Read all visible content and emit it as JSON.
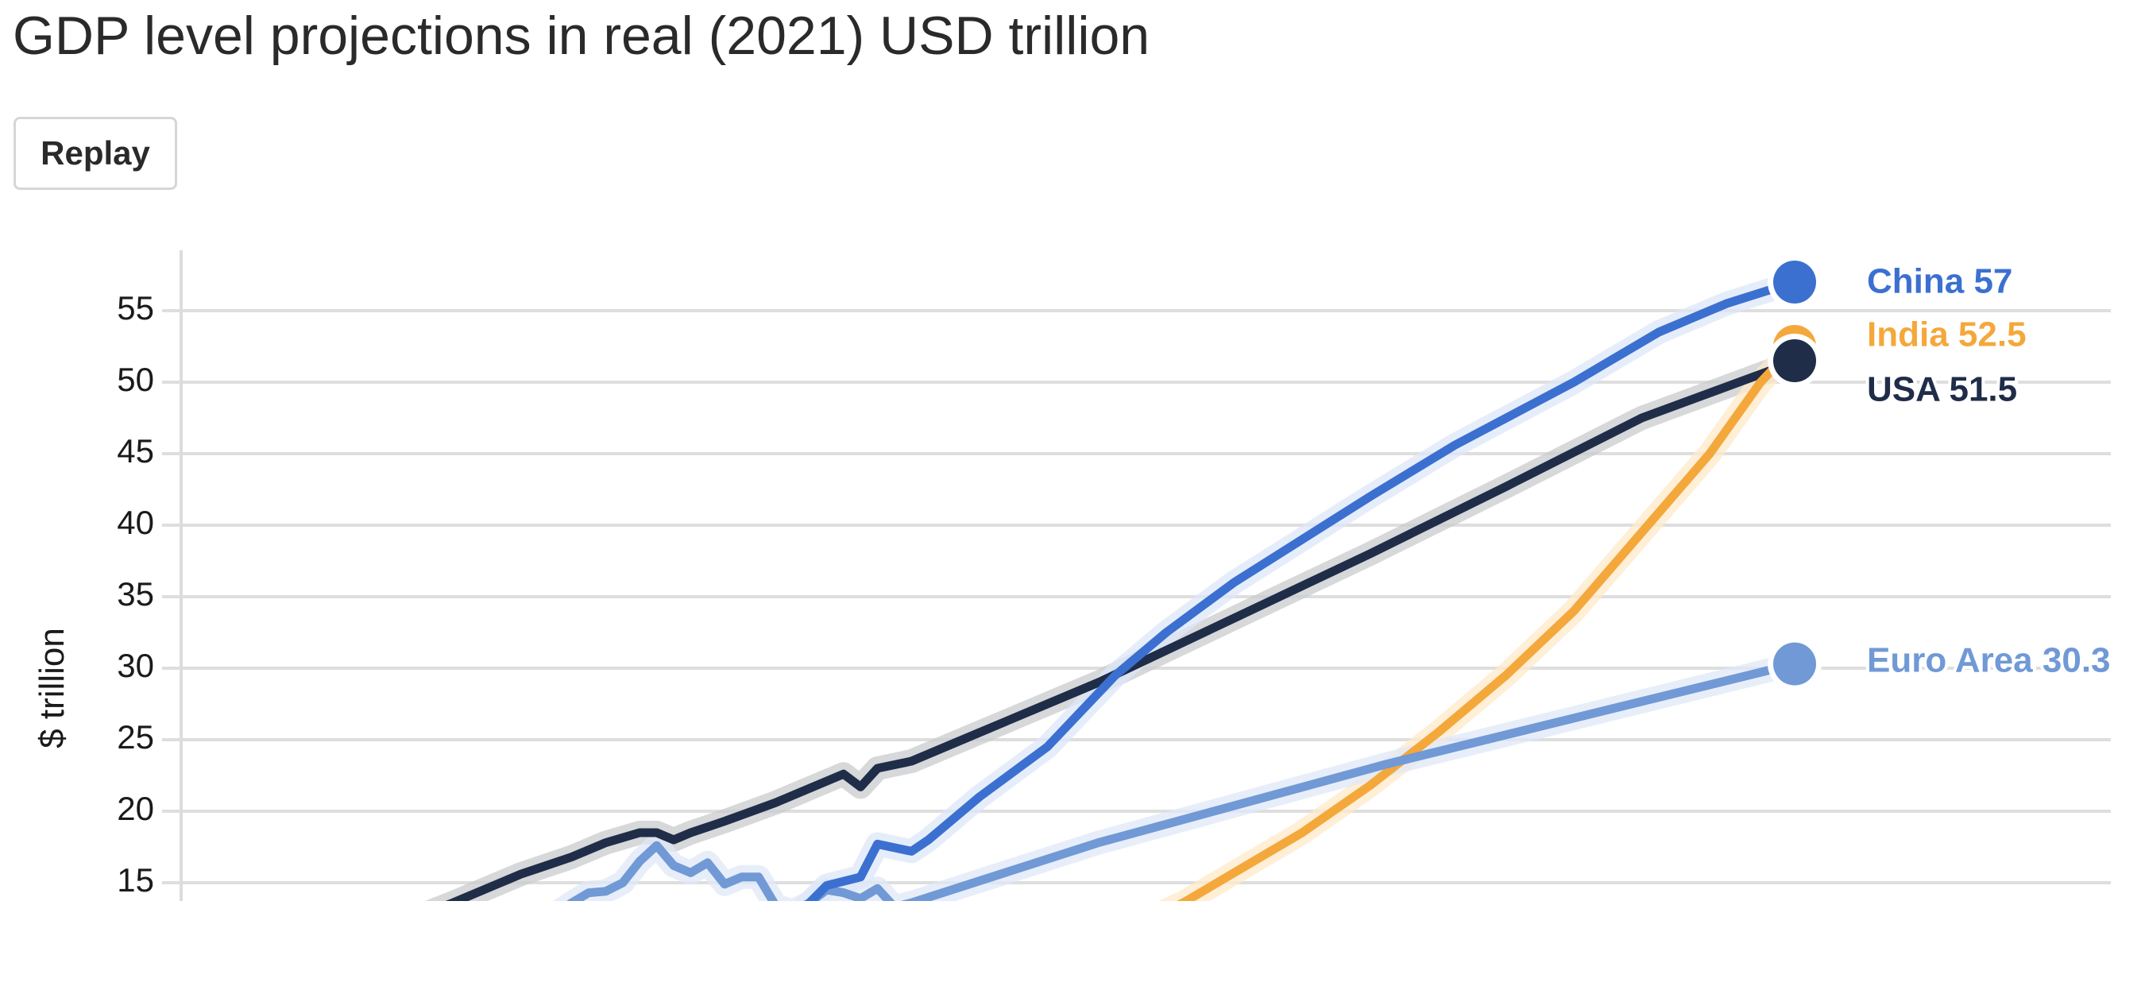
{
  "title": "GDP level projections in real (2021) USD trillion",
  "replay_label": "Replay",
  "chart_data": {
    "type": "line",
    "title": "GDP level projections in real (2021) USD trillion",
    "xlabel": "",
    "ylabel": "$ trillion",
    "ylim": [
      13.6,
      59
    ],
    "xlim": [
      1980,
      2075
    ],
    "yticks": [
      "15",
      "20",
      "25",
      "30",
      "35",
      "40",
      "45",
      "50",
      "55"
    ],
    "grid": true,
    "series": [
      {
        "name": "USA",
        "label": "USA 51.5",
        "color": "#1f2d48",
        "halo": "#c9cbce",
        "x": [
          1990,
          1993,
          1996,
          2000,
          2001,
          2003,
          2005,
          2007,
          2008,
          2009,
          2010,
          2012,
          2015,
          2017,
          2019,
          2020,
          2021,
          2023,
          2026,
          2034,
          2042,
          2050,
          2058,
          2066,
          2074,
          2075
        ],
        "y": [
          11.5,
          12.2,
          13.6,
          15.6,
          16,
          16.8,
          17.8,
          18.5,
          18.5,
          18,
          18.5,
          19.3,
          20.6,
          21.6,
          22.6,
          21.7,
          23,
          23.5,
          25,
          29,
          33.5,
          38,
          42.7,
          47.5,
          51,
          51.5
        ]
      },
      {
        "name": "India",
        "label": "India 52.5",
        "color": "#f4a83b",
        "halo": "#fde9c8",
        "x": [
          2036,
          2039,
          2042,
          2046,
          2050,
          2054,
          2058,
          2062,
          2066,
          2070,
          2073,
          2075
        ],
        "y": [
          12,
          13.6,
          15.7,
          18.5,
          21.8,
          25.5,
          29.5,
          34,
          39.5,
          45,
          50,
          52.5
        ]
      },
      {
        "name": "Euro Area",
        "label": "Euro Area 30.3",
        "color": "#7099d6",
        "halo": "#dfe8f7",
        "x": [
          2002,
          2003,
          2004,
          2005,
          2006,
          2007,
          2008,
          2009,
          2010,
          2011,
          2012,
          2013,
          2014,
          2015,
          2016,
          2017,
          2018,
          2019,
          2020,
          2021,
          2022,
          2023,
          2034,
          2051,
          2075
        ],
        "y": [
          12.8,
          13.6,
          14.3,
          14.4,
          15,
          16.5,
          17.6,
          16.2,
          15.7,
          16.4,
          14.9,
          15.4,
          15.4,
          13.4,
          13,
          13.6,
          14.5,
          14.3,
          13.9,
          14.6,
          13.3,
          13.6,
          17.8,
          23.3,
          30.3
        ]
      },
      {
        "name": "China",
        "label": "China 57",
        "color": "#3b70d0",
        "halo": "#dde7f8",
        "x": [
          2016,
          2017,
          2018,
          2020,
          2021,
          2023,
          2024,
          2027,
          2031,
          2035,
          2038,
          2042,
          2046,
          2050,
          2055,
          2062,
          2067,
          2071,
          2075
        ],
        "y": [
          12.5,
          13.6,
          14.8,
          15.4,
          17.7,
          17.2,
          18,
          21,
          24.5,
          29.5,
          32.5,
          36,
          39,
          42,
          45.6,
          50,
          53.5,
          55.5,
          57
        ]
      }
    ]
  }
}
